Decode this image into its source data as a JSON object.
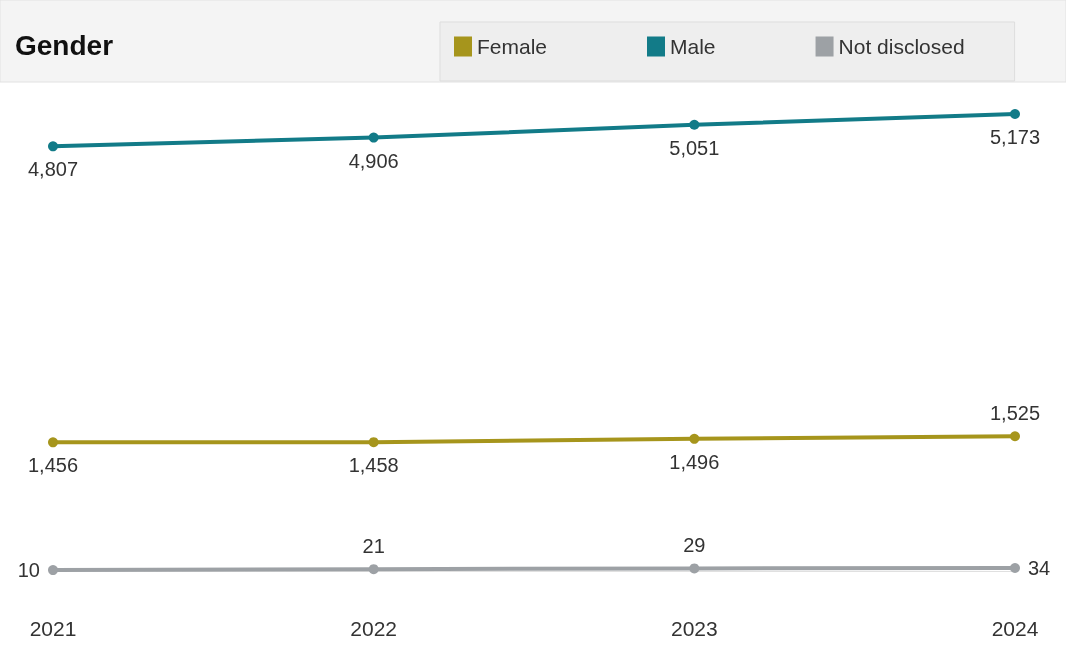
{
  "chart_data": {
    "type": "line",
    "title": "Gender",
    "categories": [
      "2021",
      "2022",
      "2023",
      "2024"
    ],
    "series": [
      {
        "name": "Female",
        "color": "#a6951c",
        "values": [
          1456,
          1458,
          1496,
          1525
        ],
        "value_labels": [
          "1,456",
          "1,458",
          "1,496",
          "1,525"
        ]
      },
      {
        "name": "Male",
        "color": "#127b88",
        "values": [
          4807,
          4906,
          5051,
          5173
        ],
        "value_labels": [
          "4,807",
          "4,906",
          "5,051",
          "5,173"
        ]
      },
      {
        "name": "Not disclosed",
        "color": "#9da1a5",
        "values": [
          10,
          21,
          29,
          34
        ],
        "value_labels": [
          "10",
          "21",
          "29",
          "34"
        ]
      }
    ],
    "legend": "top right",
    "marker": "circle",
    "line_style": "solid",
    "grid": false
  }
}
